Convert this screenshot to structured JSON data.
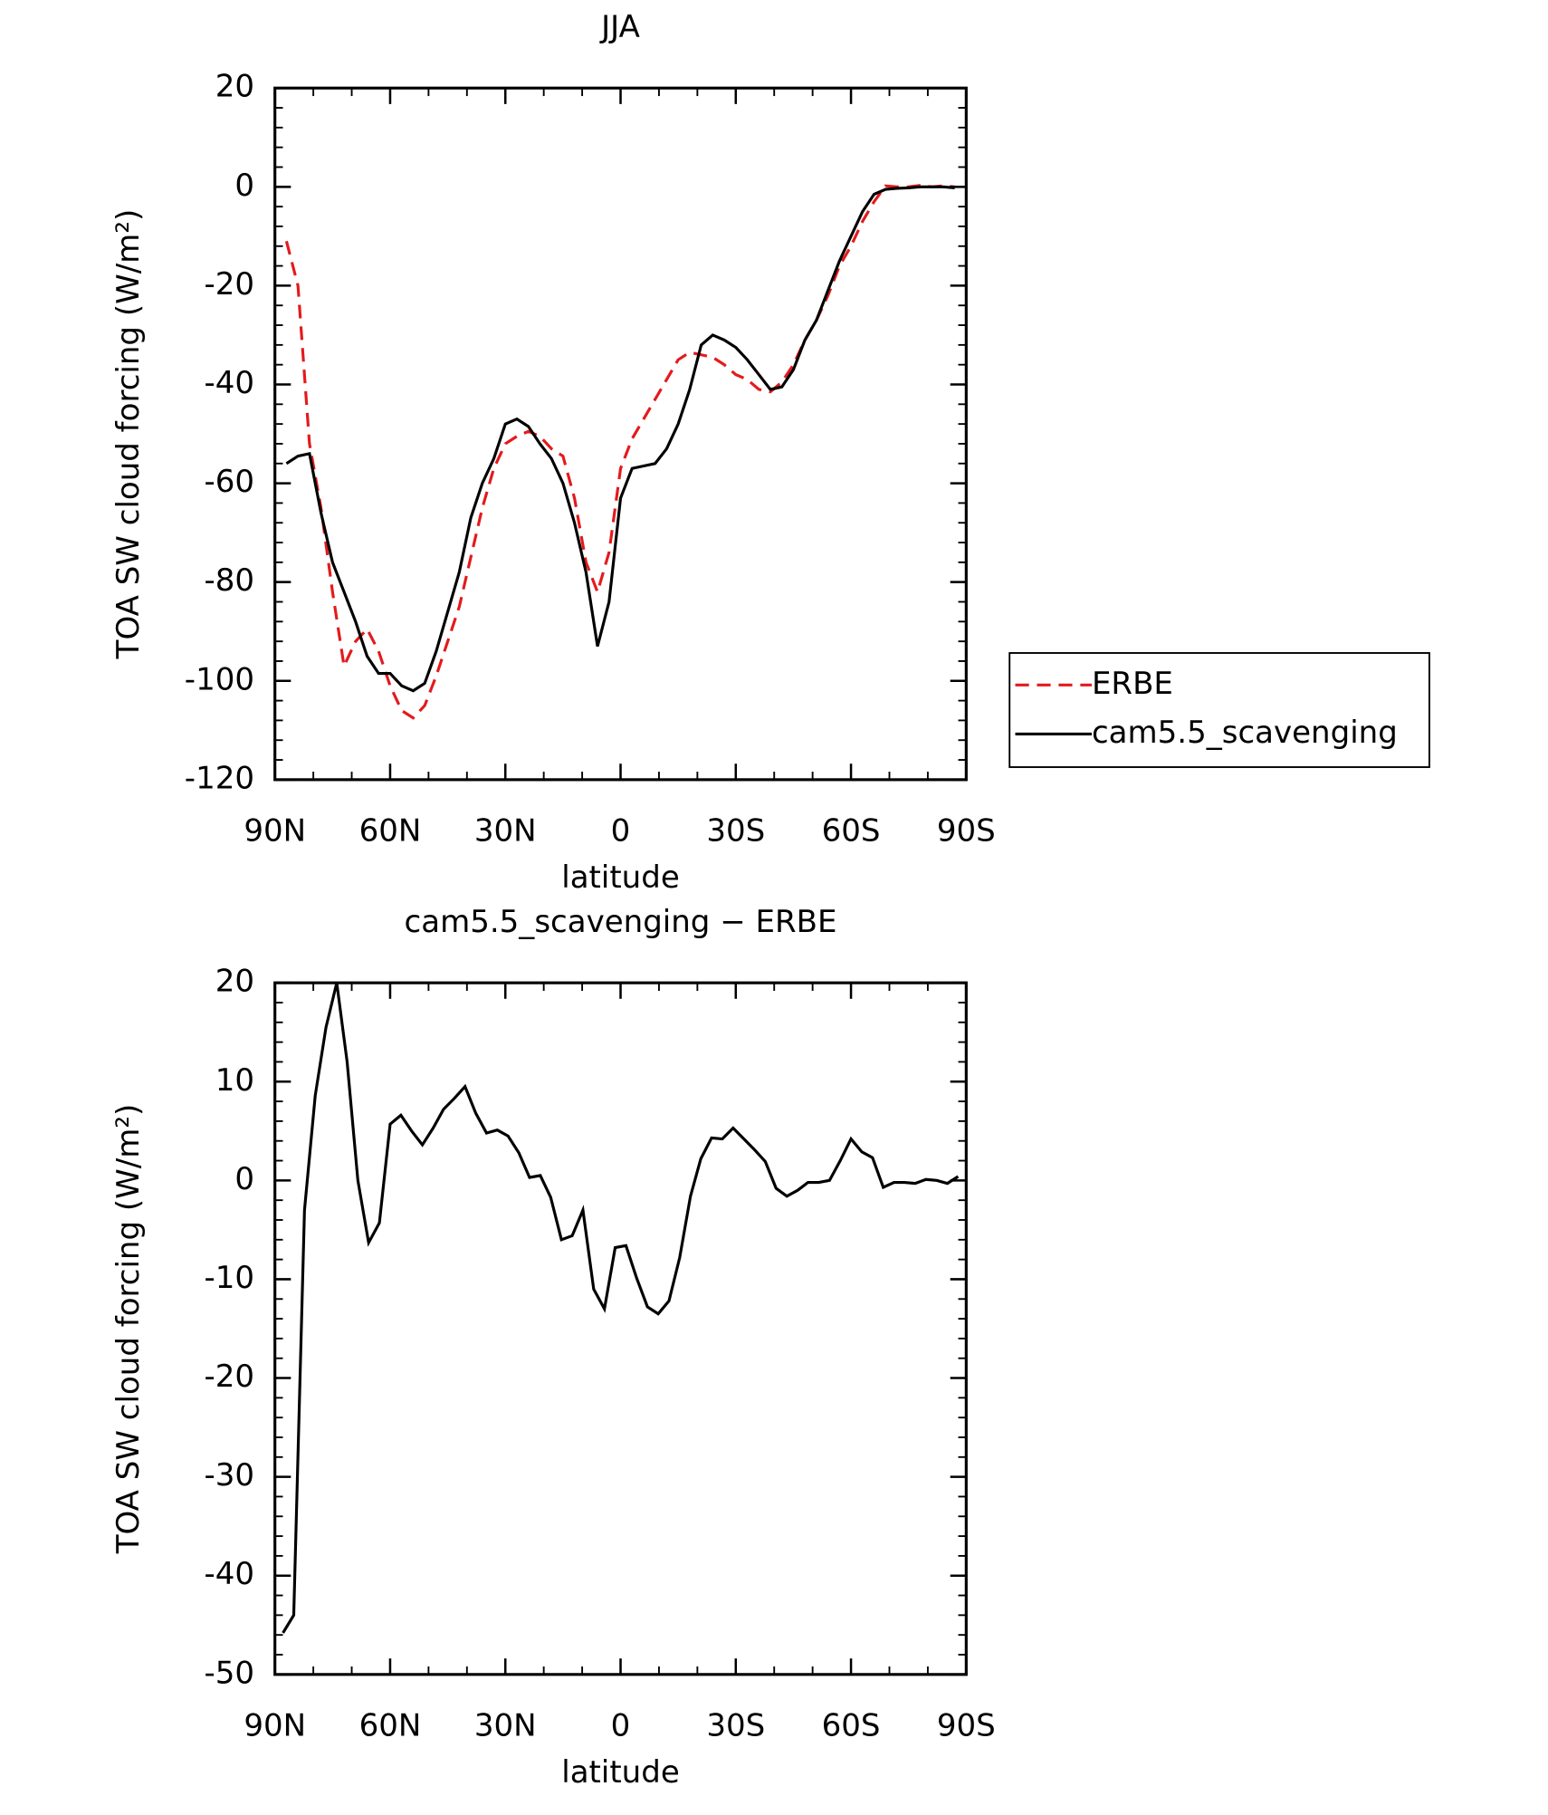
{
  "chart_data": [
    {
      "type": "line",
      "title": "JJA",
      "xlabel": "latitude",
      "ylabel": "TOA SW cloud forcing (W/m²)",
      "x": [
        87,
        84,
        81,
        78,
        75,
        72,
        69,
        66,
        63,
        60,
        57,
        54,
        51,
        48,
        45,
        42,
        39,
        36,
        33,
        30,
        27,
        24,
        21,
        18,
        15,
        12,
        9,
        6,
        3,
        0,
        -3,
        -6,
        -9,
        -12,
        -15,
        -18,
        -21,
        -24,
        -27,
        -30,
        -33,
        -36,
        -39,
        -42,
        -45,
        -48,
        -51,
        -54,
        -57,
        -60,
        -63,
        -66,
        -69,
        -72,
        -75,
        -78,
        -81,
        -84,
        -87
      ],
      "series": [
        {
          "name": "ERBE",
          "color": "#e41a1c",
          "dashed": true,
          "values": [
            -11,
            -20,
            -52,
            -65,
            -82,
            -97,
            -92,
            -89.5,
            -94,
            -101,
            -106,
            -107.5,
            -105,
            -99,
            -92,
            -85,
            -75,
            -65,
            -57,
            -52,
            -50.5,
            -49.5,
            -50.5,
            -53,
            -54.5,
            -63,
            -76,
            -82,
            -74,
            -57,
            -51,
            -47,
            -43,
            -39,
            -35,
            -33.5,
            -34,
            -34.5,
            -36,
            -38,
            -39,
            -41,
            -41.5,
            -39.5,
            -36,
            -31,
            -27,
            -22,
            -16,
            -12,
            -7,
            -3,
            0.2,
            0,
            0,
            0.3,
            0,
            0.2,
            0
          ]
        },
        {
          "name": "cam5.5_scavenging",
          "color": "#000000",
          "dashed": false,
          "values": [
            -56,
            -54.5,
            -54,
            -66,
            -76,
            -82,
            -88,
            -95,
            -98.5,
            -98.5,
            -101,
            -102,
            -100.5,
            -94,
            -86,
            -78,
            -67,
            -60,
            -55,
            -48,
            -47,
            -48.5,
            -52,
            -55,
            -60,
            -68,
            -78,
            -93,
            -84,
            -63,
            -57,
            -56.5,
            -56,
            -53,
            -48,
            -41,
            -32,
            -30,
            -31,
            -32.5,
            -35,
            -38,
            -41,
            -40.5,
            -37,
            -31,
            -27,
            -21,
            -15,
            -10,
            -5,
            -1.5,
            -0.5,
            -0.3,
            -0.2,
            0,
            0,
            0,
            -0.2
          ]
        }
      ],
      "xlim": [
        90,
        -90
      ],
      "xticks": [
        {
          "value": 90,
          "label": "90N"
        },
        {
          "value": 60,
          "label": "60N"
        },
        {
          "value": 30,
          "label": "30N"
        },
        0,
        {
          "value": -30,
          "label": "30S"
        },
        {
          "value": -60,
          "label": "60S"
        },
        {
          "value": -90,
          "label": "90S"
        }
      ],
      "ylim": [
        -120,
        20
      ],
      "yticks": [
        -120,
        -100,
        -80,
        -60,
        -40,
        -20,
        0,
        20
      ],
      "legend": "right"
    },
    {
      "type": "line",
      "title": "cam5.5_scavenging − ERBE",
      "xlabel": "latitude",
      "ylabel": "TOA SW cloud forcing (W/m²)",
      "x": [
        87.9,
        85.1,
        82.3,
        79.5,
        76.7,
        73.9,
        71.2,
        68.4,
        65.6,
        62.8,
        60.0,
        57.2,
        54.4,
        51.6,
        48.8,
        46.1,
        43.3,
        40.5,
        37.7,
        34.9,
        32.1,
        29.3,
        26.5,
        23.7,
        20.9,
        18.2,
        15.4,
        12.6,
        9.8,
        7.0,
        4.2,
        1.4,
        -1.4,
        -4.2,
        -7.0,
        -9.8,
        -12.6,
        -15.4,
        -18.2,
        -20.9,
        -23.7,
        -26.5,
        -29.3,
        -32.1,
        -34.9,
        -37.7,
        -40.5,
        -43.3,
        -46.1,
        -48.8,
        -51.6,
        -54.4,
        -57.2,
        -60.0,
        -62.8,
        -65.6,
        -68.4,
        -71.2,
        -73.9,
        -76.7,
        -79.5,
        -82.3,
        -85.1,
        -87.9
      ],
      "series": [
        {
          "name": "cam5.5_scavenging − ERBE",
          "color": "#000000",
          "dashed": false,
          "values": [
            -45.8,
            -44,
            -3,
            8.6,
            15.5,
            20,
            12,
            0,
            -6.3,
            -4.3,
            5.7,
            6.6,
            5,
            3.6,
            5.3,
            7.2,
            8.3,
            9.5,
            6.8,
            4.8,
            5.1,
            4.5,
            2.8,
            0.3,
            0.5,
            -1.7,
            -6,
            -5.6,
            -3,
            -11,
            -13,
            -6.8,
            -6.6,
            -9.9,
            -12.8,
            -13.5,
            -12.2,
            -7.8,
            -1.6,
            2.2,
            4.3,
            4.2,
            5.3,
            4.2,
            3.1,
            1.9,
            -0.8,
            -1.6,
            -1,
            -0.2,
            -0.2,
            0,
            2,
            4.2,
            2.9,
            2.3,
            -0.7,
            -0.2,
            -0.2,
            -0.3,
            0.1,
            0,
            -0.3,
            0.4
          ]
        }
      ],
      "xlim": [
        90,
        -90
      ],
      "xticks": [
        {
          "value": 90,
          "label": "90N"
        },
        {
          "value": 60,
          "label": "60N"
        },
        {
          "value": 30,
          "label": "30N"
        },
        0,
        {
          "value": -30,
          "label": "30S"
        },
        {
          "value": -60,
          "label": "60S"
        },
        {
          "value": -90,
          "label": "90S"
        }
      ],
      "ylim": [
        -50,
        20
      ],
      "yticks": [
        -50,
        -40,
        -30,
        -20,
        -10,
        0,
        10,
        20
      ]
    }
  ]
}
